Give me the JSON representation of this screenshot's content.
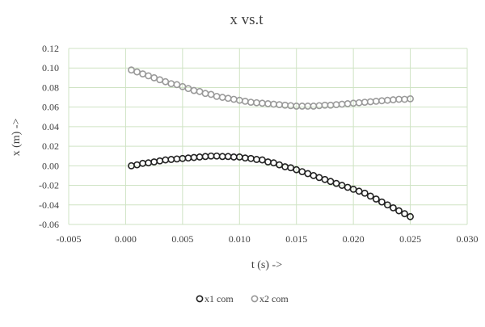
{
  "chart_data": {
    "type": "scatter",
    "title": "x vs.t",
    "xlabel": "t (s) ->",
    "ylabel": "x  (m)  ->",
    "xlim": [
      -0.005,
      0.03
    ],
    "ylim": [
      -0.06,
      0.12
    ],
    "x_ticks": [
      "-0.005",
      "0.000",
      "0.005",
      "0.010",
      "0.015",
      "0.020",
      "0.025",
      "0.030"
    ],
    "y_ticks": [
      "0.12",
      "0.10",
      "0.08",
      "0.06",
      "0.04",
      "0.02",
      "0.00",
      "-0.02",
      "-0.04",
      "-0.06"
    ],
    "grid": true,
    "legend_position": "bottom",
    "series": [
      {
        "name": "x1 com",
        "color": "#222222",
        "x": [
          0.0005,
          0.001,
          0.0015,
          0.002,
          0.0025,
          0.003,
          0.0035,
          0.004,
          0.0045,
          0.005,
          0.0055,
          0.006,
          0.0065,
          0.007,
          0.0075,
          0.008,
          0.0085,
          0.009,
          0.0095,
          0.01,
          0.0105,
          0.011,
          0.0115,
          0.012,
          0.0125,
          0.013,
          0.0135,
          0.014,
          0.0145,
          0.015,
          0.0155,
          0.016,
          0.0165,
          0.017,
          0.0175,
          0.018,
          0.0185,
          0.019,
          0.0195,
          0.02,
          0.0205,
          0.021,
          0.0215,
          0.022,
          0.0225,
          0.023,
          0.0235,
          0.024,
          0.0245,
          0.025
        ],
        "y": [
          0.0,
          0.001,
          0.0025,
          0.003,
          0.004,
          0.005,
          0.006,
          0.0065,
          0.007,
          0.0075,
          0.008,
          0.0085,
          0.009,
          0.0095,
          0.01,
          0.01,
          0.0095,
          0.0095,
          0.009,
          0.009,
          0.008,
          0.0075,
          0.0065,
          0.006,
          0.004,
          0.003,
          0.001,
          -0.001,
          -0.002,
          -0.004,
          -0.006,
          -0.008,
          -0.01,
          -0.012,
          -0.014,
          -0.016,
          -0.018,
          -0.02,
          -0.022,
          -0.024,
          -0.026,
          -0.028,
          -0.031,
          -0.034,
          -0.037,
          -0.04,
          -0.043,
          -0.046,
          -0.049,
          -0.052
        ]
      },
      {
        "name": "x2 com",
        "color": "#9a9a9a",
        "x": [
          0.0005,
          0.001,
          0.0015,
          0.002,
          0.0025,
          0.003,
          0.0035,
          0.004,
          0.0045,
          0.005,
          0.0055,
          0.006,
          0.0065,
          0.007,
          0.0075,
          0.008,
          0.0085,
          0.009,
          0.0095,
          0.01,
          0.0105,
          0.011,
          0.0115,
          0.012,
          0.0125,
          0.013,
          0.0135,
          0.014,
          0.0145,
          0.015,
          0.0155,
          0.016,
          0.0165,
          0.017,
          0.0175,
          0.018,
          0.0185,
          0.019,
          0.0195,
          0.02,
          0.0205,
          0.021,
          0.0215,
          0.022,
          0.0225,
          0.023,
          0.0235,
          0.024,
          0.0245,
          0.025
        ],
        "y": [
          0.098,
          0.096,
          0.094,
          0.092,
          0.09,
          0.088,
          0.086,
          0.084,
          0.083,
          0.081,
          0.079,
          0.077,
          0.076,
          0.074,
          0.073,
          0.071,
          0.07,
          0.069,
          0.068,
          0.067,
          0.066,
          0.065,
          0.0645,
          0.064,
          0.0635,
          0.063,
          0.0625,
          0.062,
          0.0615,
          0.061,
          0.061,
          0.061,
          0.061,
          0.0615,
          0.062,
          0.062,
          0.0625,
          0.063,
          0.0635,
          0.064,
          0.0645,
          0.065,
          0.0655,
          0.066,
          0.0665,
          0.067,
          0.0675,
          0.068,
          0.068,
          0.0685
        ]
      }
    ]
  }
}
